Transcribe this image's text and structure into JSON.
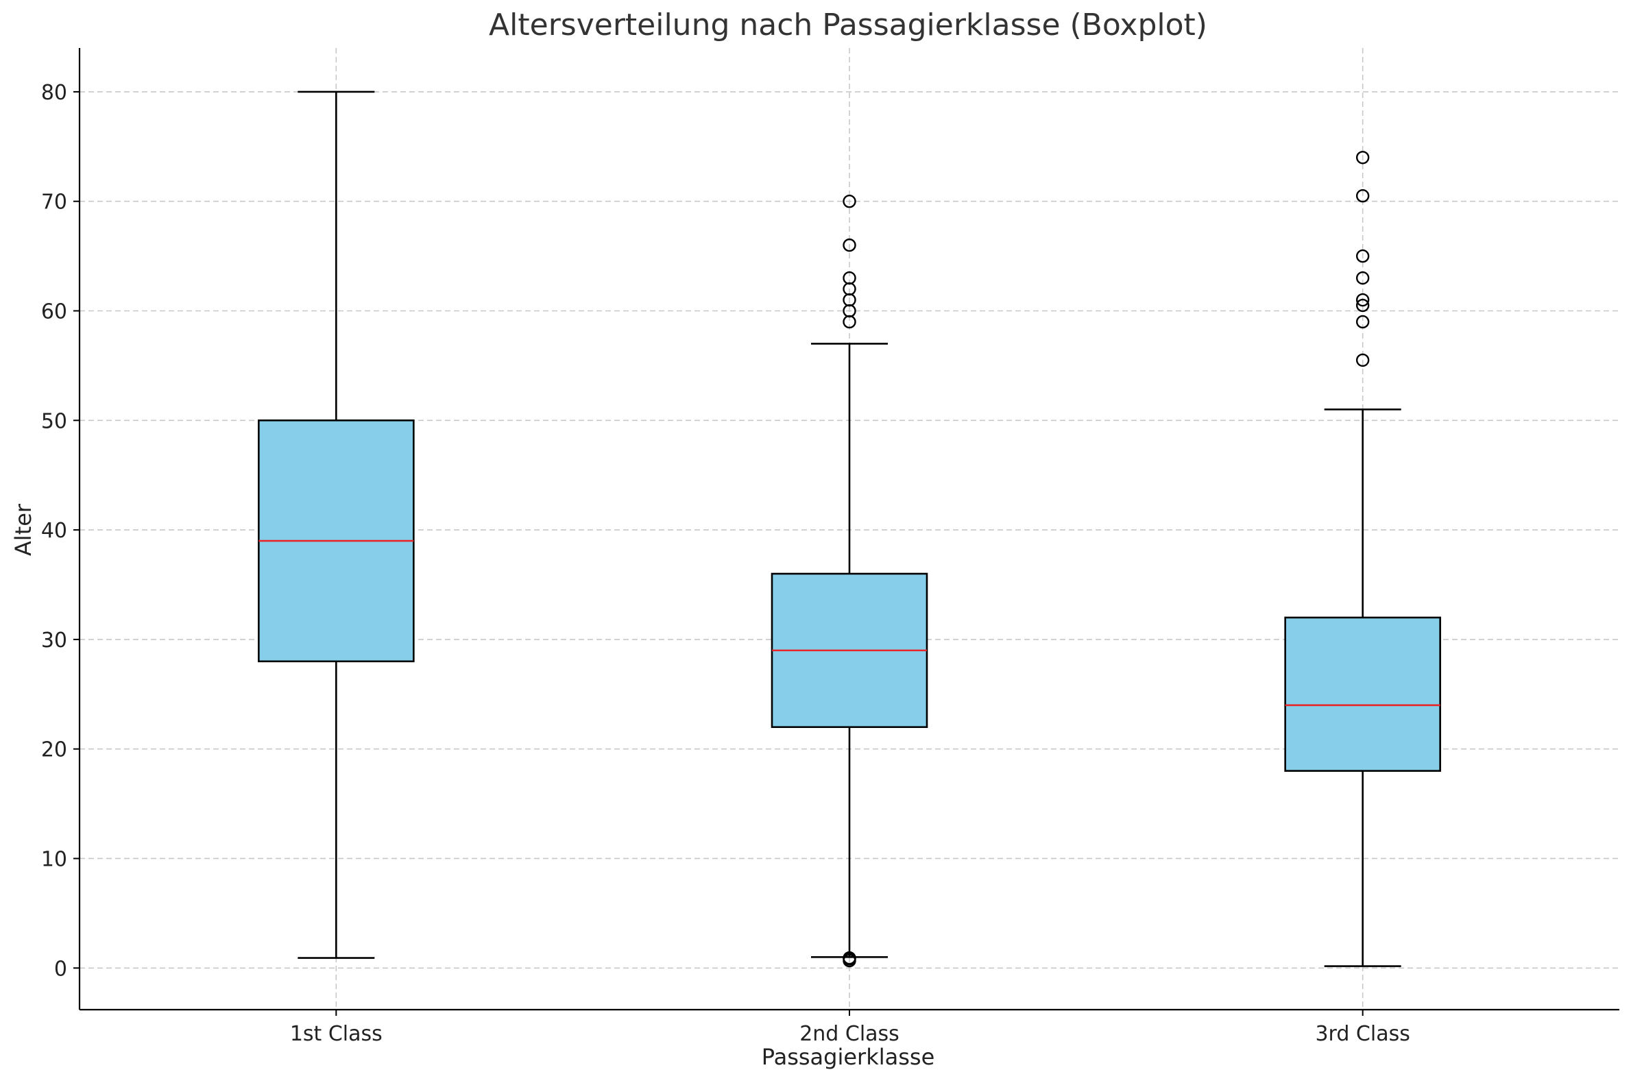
{
  "chart_data": {
    "type": "boxplot",
    "title": "Altersverteilung nach Passagierklasse (Boxplot)",
    "xlabel": "Passagierklasse",
    "ylabel": "Alter",
    "ylim": [
      -3.8,
      84
    ],
    "yticks": [
      0,
      10,
      20,
      30,
      40,
      50,
      60,
      70,
      80
    ],
    "grid": true,
    "box_color": "#87CEEB",
    "median_color": "#E8262A",
    "categories": [
      "1st Class",
      "2nd Class",
      "3rd Class"
    ],
    "boxes": [
      {
        "category": "1st Class",
        "whisker_low": 0.92,
        "q1": 28,
        "median": 39,
        "q3": 50,
        "whisker_high": 80,
        "outliers": []
      },
      {
        "category": "2nd Class",
        "whisker_low": 1,
        "q1": 22,
        "median": 29,
        "q3": 36,
        "whisker_high": 57,
        "outliers": [
          0.67,
          0.83,
          0.92,
          59,
          60,
          61,
          62,
          63,
          66,
          70
        ]
      },
      {
        "category": "3rd Class",
        "whisker_low": 0.17,
        "q1": 18,
        "median": 24,
        "q3": 32,
        "whisker_high": 51,
        "outliers": [
          55.5,
          59,
          60.5,
          61,
          63,
          65,
          70.5,
          74
        ]
      }
    ]
  }
}
